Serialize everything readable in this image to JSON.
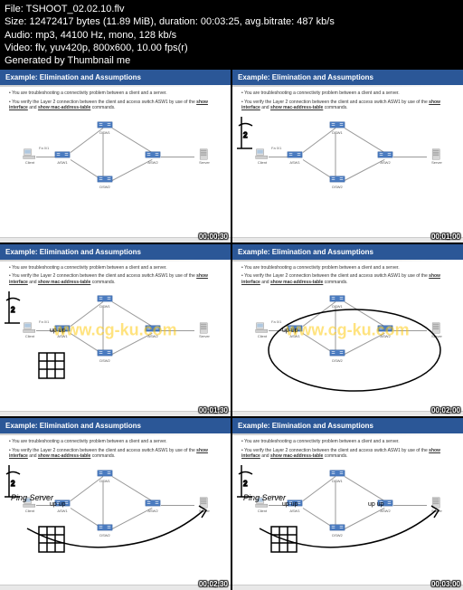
{
  "header": {
    "file": "File: TSHOOT_02.02.10.flv",
    "size": "Size: 12472417 bytes (11.89 MiB), duration: 00:03:25, avg.bitrate: 487 kb/s",
    "audio": "Audio: mp3, 44100 Hz, mono, 128 kb/s",
    "video": "Video: flv, yuv420p, 800x600, 10.00 fps(r)",
    "generated": "Generated by Thumbnail me"
  },
  "slide": {
    "title": "Example: Elimination and Assumptions",
    "bullet1": "You are troubleshooting a connectivity problem between a client and a server.",
    "bullet2_a": "You verify the Layer 2 connection between the client and access switch ASW1 by use of the ",
    "bullet2_b": "show interface",
    "bullet2_c": " and ",
    "bullet2_d": "show mac-address-table",
    "bullet2_e": " commands."
  },
  "devices": {
    "client": "Client",
    "server": "Server",
    "dsw1": "DSW1",
    "dsw2": "DSW2",
    "asw1": "ASW1",
    "asw2": "ASW2",
    "fa": "Fa 0/1"
  },
  "watermark": "www.cg-ku.com",
  "thumbs": [
    {
      "time": "00:00:30",
      "annotations": "none"
    },
    {
      "time": "00:01:00",
      "annotations": "l2"
    },
    {
      "time": "00:01:30",
      "annotations": "l2grid"
    },
    {
      "time": "00:02:00",
      "annotations": "circle"
    },
    {
      "time": "00:02:30",
      "annotations": "ping"
    },
    {
      "time": "00:03:00",
      "annotations": "ping2"
    }
  ],
  "colors": {
    "title_bg": "#2b5797",
    "switch_fill": "#4a7bc0",
    "pc_fill": "#d0d0d0",
    "watermark": "rgba(255,200,0,0.5)"
  }
}
